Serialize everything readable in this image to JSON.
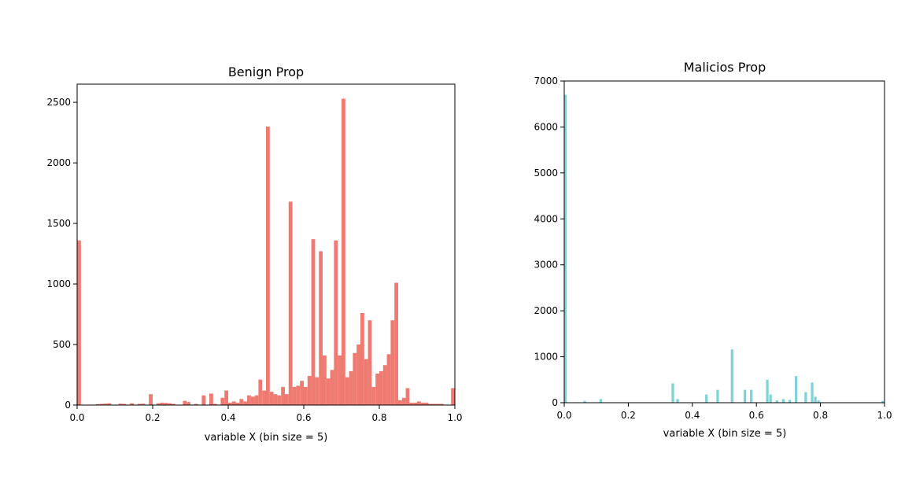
{
  "chart_data": [
    {
      "type": "bar",
      "title": "Benign Prop",
      "xlabel": "variable X (bin size = 5)",
      "ylabel": "",
      "xlim": [
        0.0,
        1.0
      ],
      "ylim": [
        0,
        2650
      ],
      "xticks": [
        "0.0",
        "0.2",
        "0.4",
        "0.6",
        "0.8",
        "1.0"
      ],
      "yticks": [
        "0",
        "500",
        "1000",
        "1500",
        "2000",
        "2500"
      ],
      "color": "#ef7a72",
      "bin_width": 0.01,
      "x": [
        0.0,
        0.05,
        0.06,
        0.07,
        0.08,
        0.11,
        0.12,
        0.14,
        0.16,
        0.17,
        0.19,
        0.21,
        0.22,
        0.23,
        0.24,
        0.25,
        0.28,
        0.29,
        0.31,
        0.33,
        0.35,
        0.36,
        0.38,
        0.39,
        0.4,
        0.41,
        0.42,
        0.43,
        0.44,
        0.45,
        0.46,
        0.47,
        0.48,
        0.49,
        0.5,
        0.51,
        0.52,
        0.53,
        0.54,
        0.55,
        0.56,
        0.57,
        0.58,
        0.59,
        0.6,
        0.61,
        0.62,
        0.63,
        0.64,
        0.65,
        0.66,
        0.67,
        0.68,
        0.69,
        0.7,
        0.71,
        0.72,
        0.73,
        0.74,
        0.75,
        0.76,
        0.77,
        0.78,
        0.79,
        0.8,
        0.81,
        0.82,
        0.83,
        0.84,
        0.85,
        0.86,
        0.87,
        0.88,
        0.89,
        0.9,
        0.91,
        0.92,
        0.93,
        0.94,
        0.95,
        0.96,
        0.99
      ],
      "values": [
        1360,
        8,
        10,
        12,
        15,
        12,
        10,
        15,
        10,
        12,
        90,
        15,
        20,
        18,
        15,
        10,
        35,
        25,
        10,
        80,
        95,
        10,
        60,
        120,
        20,
        30,
        20,
        50,
        30,
        80,
        70,
        80,
        210,
        120,
        2300,
        110,
        90,
        80,
        150,
        90,
        1680,
        150,
        160,
        200,
        150,
        240,
        1370,
        230,
        1270,
        410,
        220,
        290,
        1360,
        410,
        2530,
        230,
        280,
        430,
        500,
        760,
        380,
        700,
        150,
        260,
        280,
        330,
        420,
        700,
        1010,
        40,
        60,
        140,
        20,
        20,
        30,
        20,
        20,
        10,
        10,
        10,
        10,
        140
      ]
    },
    {
      "type": "bar",
      "title": "Malicios Prop",
      "xlabel": "variable X (bin size = 5)",
      "ylabel": "",
      "xlim": [
        0.0,
        1.0
      ],
      "ylim": [
        0,
        7000
      ],
      "xticks": [
        "0.0",
        "0.2",
        "0.4",
        "0.6",
        "0.8",
        "1.0"
      ],
      "yticks": [
        "0",
        "1000",
        "2000",
        "3000",
        "4000",
        "5000",
        "6000",
        "7000"
      ],
      "color": "#7fd3d6",
      "bin_width": 0.008,
      "x": [
        0.0,
        0.06,
        0.11,
        0.335,
        0.35,
        0.44,
        0.475,
        0.52,
        0.56,
        0.58,
        0.63,
        0.64,
        0.66,
        0.68,
        0.7,
        0.72,
        0.75,
        0.77,
        0.78,
        0.79,
        0.99
      ],
      "values": [
        6700,
        40,
        80,
        420,
        80,
        180,
        280,
        1160,
        280,
        280,
        500,
        180,
        50,
        80,
        60,
        580,
        230,
        440,
        130,
        50,
        40
      ]
    }
  ]
}
